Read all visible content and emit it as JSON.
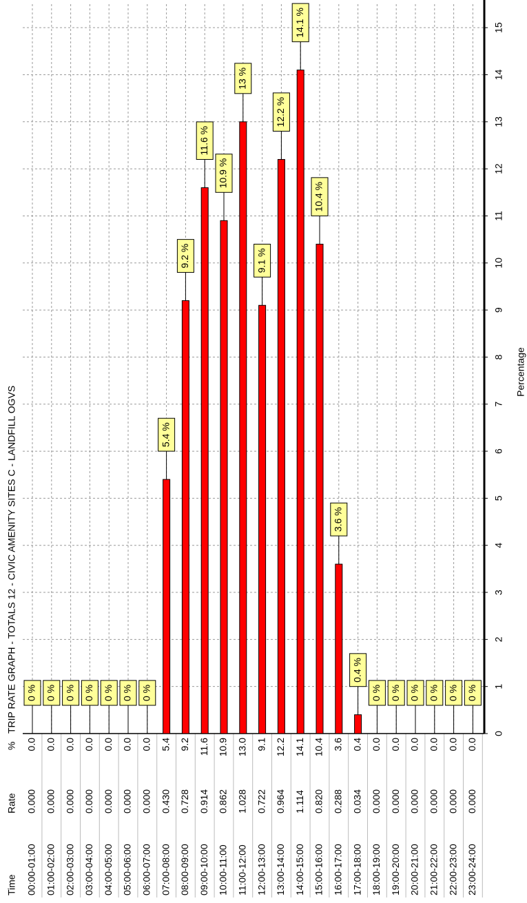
{
  "chart_data": {
    "type": "bar",
    "title": "TRIP RATE GRAPH - TOTALS  12 - CIVIC AMENITY SITES  C - LANDFILL    OGVS",
    "table_headers": [
      "Time",
      "Rate",
      "%"
    ],
    "categories": [
      "00:00-01:00",
      "01:00-02:00",
      "02:00-03:00",
      "03:00-04:00",
      "04:00-05:00",
      "05:00-06:00",
      "06:00-07:00",
      "07:00-08:00",
      "08:00-09:00",
      "09:00-10:00",
      "10:00-11:00",
      "11:00-12:00",
      "12:00-13:00",
      "13:00-14:00",
      "14:00-15:00",
      "15:00-16:00",
      "16:00-17:00",
      "17:00-18:00",
      "18:00-19:00",
      "19:00-20:00",
      "20:00-21:00",
      "21:00-22:00",
      "22:00-23:00",
      "23:00-24:00"
    ],
    "rates": [
      "0.000",
      "0.000",
      "0.000",
      "0.000",
      "0.000",
      "0.000",
      "0.000",
      "0.430",
      "0.728",
      "0.914",
      "0.862",
      "1.028",
      "0.722",
      "0.964",
      "1.114",
      "0.820",
      "0.288",
      "0.034",
      "0.000",
      "0.000",
      "0.000",
      "0.000",
      "0.000",
      "0.000"
    ],
    "percents": [
      "0.0",
      "0.0",
      "0.0",
      "0.0",
      "0.0",
      "0.0",
      "0.0",
      "5.4",
      "9.2",
      "11.6",
      "10.9",
      "13.0",
      "9.1",
      "12.2",
      "14.1",
      "10.4",
      "3.6",
      "0.4",
      "0.0",
      "0.0",
      "0.0",
      "0.0",
      "0.0",
      "0.0"
    ],
    "values": [
      0,
      0,
      0,
      0,
      0,
      0,
      0,
      5.4,
      9.2,
      11.6,
      10.9,
      13.0,
      9.1,
      12.2,
      14.1,
      10.4,
      3.6,
      0.4,
      0,
      0,
      0,
      0,
      0,
      0
    ],
    "value_labels": [
      "0 %",
      "0 %",
      "0 %",
      "0 %",
      "0 %",
      "0 %",
      "0 %",
      "5.4 %",
      "9.2 %",
      "11.6 %",
      "10.9 %",
      "13 %",
      "9.1 %",
      "12.2 %",
      "14.1 %",
      "10.4 %",
      "3.6 %",
      "0.4 %",
      "0 %",
      "0 %",
      "0 %",
      "0 %",
      "0 %",
      "0 %"
    ],
    "color": "#ff0000",
    "xlabel": "Percentage",
    "xlim": [
      0,
      15.5
    ],
    "xticks": [
      0,
      1,
      2,
      3,
      4,
      5,
      6,
      7,
      8,
      9,
      10,
      11,
      12,
      13,
      14,
      15
    ],
    "grid": true
  }
}
